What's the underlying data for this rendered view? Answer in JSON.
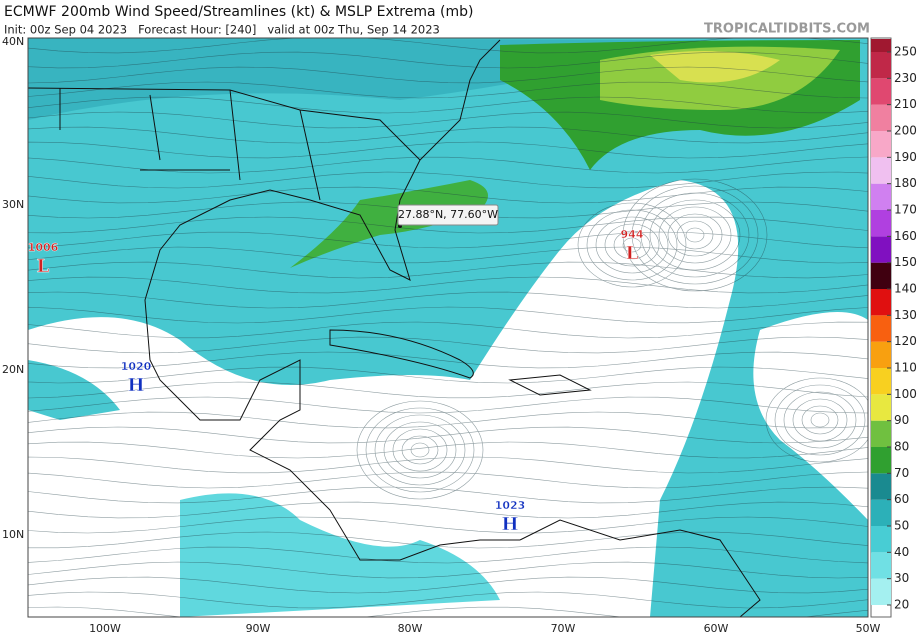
{
  "header": {
    "title": "ECMWF 200mb Wind Speed/Streamlines (kt) & MSLP Extrema (mb)",
    "subtitle": "Init: 00z Sep 04 2023   Forecast Hour: [240]   valid at 00z Thu, Sep 14 2023",
    "site": "TROPICALTIDBITS.COM"
  },
  "map": {
    "lat_labels": [
      "40N",
      "30N",
      "20N",
      "10N"
    ],
    "lon_labels": [
      "100W",
      "90W",
      "80W",
      "70W",
      "60W",
      "50W"
    ],
    "tooltip": "27.88°N, 77.60°W",
    "extrema": [
      {
        "value": 1006,
        "symbol": "L"
      },
      {
        "value": 1020,
        "symbol": "H"
      },
      {
        "value": 944,
        "symbol": "L"
      },
      {
        "value": 1023,
        "symbol": "H"
      }
    ]
  },
  "colorbar": {
    "ticks": [
      20,
      30,
      40,
      50,
      60,
      70,
      80,
      90,
      100,
      110,
      120,
      130,
      140,
      150,
      160,
      170,
      180,
      190,
      200,
      210,
      230,
      250
    ],
    "colors": [
      "#a4f0f0",
      "#70e0e4",
      "#48cdd4",
      "#2cb0b8",
      "#1a8a90",
      "#30a030",
      "#70c040",
      "#e8e840",
      "#f8d020",
      "#f8a010",
      "#f86010",
      "#e01010",
      "#400010",
      "#8010c0",
      "#b040e0",
      "#d080f0",
      "#f0c0f0",
      "#f8a8c8",
      "#f080a0",
      "#e04870",
      "#c02848",
      "#a01830"
    ]
  }
}
